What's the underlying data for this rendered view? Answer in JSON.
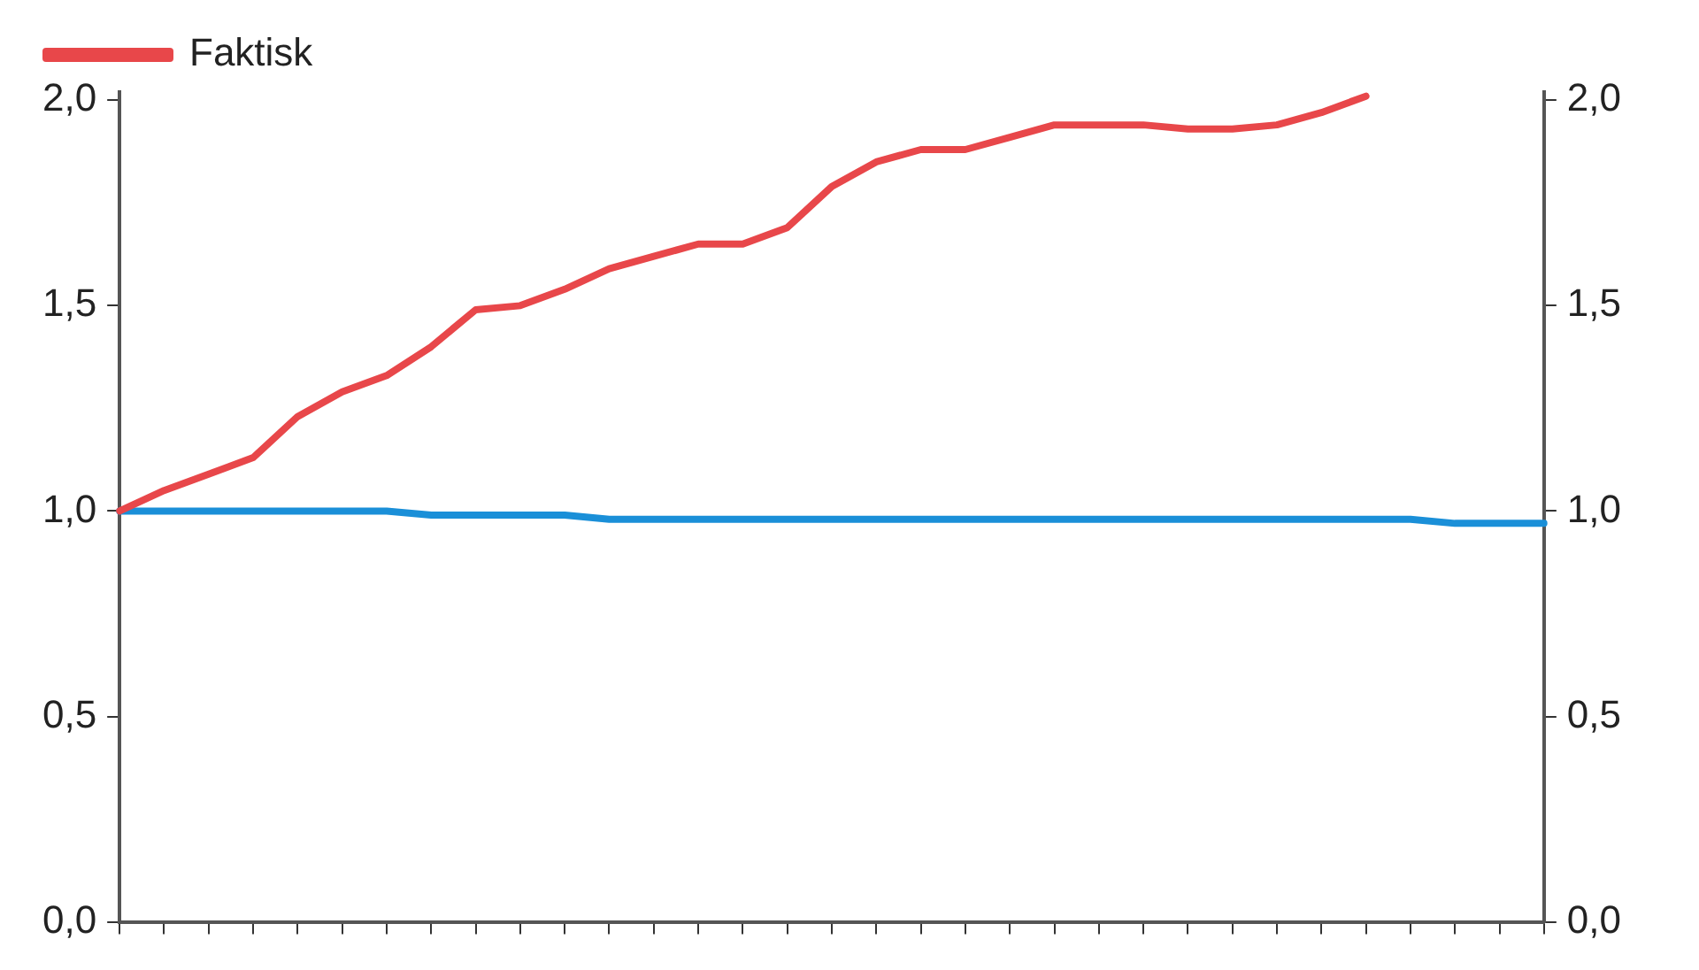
{
  "chart_data": {
    "type": "line",
    "categories": [
      null,
      null,
      null,
      null,
      null,
      null,
      null,
      null,
      null,
      null,
      null,
      null,
      null,
      null,
      null,
      null,
      null,
      null,
      null,
      null,
      null,
      null,
      null,
      null,
      null,
      null,
      null,
      null,
      null,
      null,
      null,
      null,
      null
    ],
    "series": [
      {
        "name": "Faktisk",
        "color": "#e8474a",
        "values": [
          1.0,
          1.05,
          1.09,
          1.13,
          1.23,
          1.29,
          1.33,
          1.4,
          1.49,
          1.5,
          1.54,
          1.59,
          1.62,
          1.65,
          1.65,
          1.69,
          1.79,
          1.85,
          1.88,
          1.88,
          1.91,
          1.94,
          1.94,
          1.94,
          1.93,
          1.93,
          1.94,
          1.97,
          2.01,
          null,
          null,
          null,
          null
        ]
      },
      {
        "color": "#1a8fd8",
        "values": [
          1.0,
          1.0,
          1.0,
          1.0,
          1.0,
          1.0,
          1.0,
          0.99,
          0.99,
          0.99,
          0.99,
          0.98,
          0.98,
          0.98,
          0.98,
          0.98,
          0.98,
          0.98,
          0.98,
          0.98,
          0.98,
          0.98,
          0.98,
          0.98,
          0.98,
          0.98,
          0.98,
          0.98,
          0.98,
          0.98,
          0.97,
          0.97,
          0.97
        ]
      }
    ],
    "ylim": [
      0,
      2.02
    ],
    "yticks": [
      {
        "value": 0,
        "label": "0,0"
      },
      {
        "value": 0.5,
        "label": "0,5"
      },
      {
        "value": 1,
        "label": "1,0"
      },
      {
        "value": 1.5,
        "label": "1,5"
      },
      {
        "value": 2,
        "label": "2,0"
      }
    ],
    "y2lim": [
      0,
      2.02
    ],
    "y2ticks": [
      {
        "value": 0,
        "label": "0,0"
      },
      {
        "value": 0.5,
        "label": "0,5"
      },
      {
        "value": 1,
        "label": "1,0"
      },
      {
        "value": 1.5,
        "label": "1,5"
      },
      {
        "value": 2,
        "label": "2,0"
      }
    ],
    "tick_labels": "y",
    "grid": false,
    "legend": "top left",
    "marker": "none",
    "line_style": "solid"
  }
}
